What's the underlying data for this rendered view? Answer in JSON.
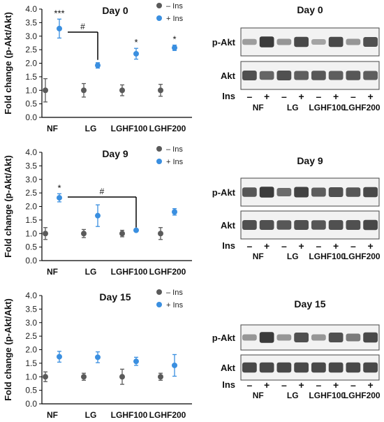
{
  "colors": {
    "minus": "#5a5a5a",
    "plus": "#3a8fe0",
    "axis": "#000000",
    "blot_bg": "#f2f2f2",
    "band": "#2a2a2a"
  },
  "chart_data": [
    {
      "type": "scatter",
      "title": "Day 0",
      "ylabel": "Fold change (p-Akt/Akt)",
      "ylim": [
        0,
        4.0
      ],
      "yticks": [
        "0.0",
        "0.5",
        "1.0",
        "1.5",
        "2.0",
        "2.5",
        "3.0",
        "3.5",
        "4.0"
      ],
      "categories": [
        "NF",
        "LG",
        "LGHF100",
        "LGHF200"
      ],
      "legend": [
        "– Ins",
        "+ Ins"
      ],
      "legend_position": "top-right",
      "series": [
        {
          "name": "– Ins",
          "values": [
            1.0,
            1.0,
            1.0,
            1.0
          ],
          "errors": [
            0.43,
            0.25,
            0.2,
            0.22
          ]
        },
        {
          "name": "+ Ins",
          "values": [
            3.28,
            1.92,
            2.35,
            2.57
          ],
          "errors": [
            0.35,
            0.1,
            0.2,
            0.1
          ]
        }
      ],
      "significance": [
        "***",
        "",
        "*",
        "*"
      ],
      "bracket_label": "#",
      "bracket_from": "NF",
      "bracket_to": "LG",
      "bracket_y": 3.15
    },
    {
      "type": "scatter",
      "title": "Day 9",
      "ylabel": "Fold change (p-Akt/Akt)",
      "ylim": [
        0,
        4.0
      ],
      "yticks": [
        "0.0",
        "0.5",
        "1.0",
        "1.5",
        "2.0",
        "2.5",
        "3.0",
        "3.5",
        "4.0"
      ],
      "categories": [
        "NF",
        "LG",
        "LGHF100",
        "LGHF200"
      ],
      "legend": [
        "– Ins",
        "+ Ins"
      ],
      "legend_position": "top-right",
      "series": [
        {
          "name": "– Ins",
          "values": [
            1.0,
            1.0,
            1.0,
            1.0
          ],
          "errors": [
            0.22,
            0.15,
            0.12,
            0.22
          ]
        },
        {
          "name": "+ Ins",
          "values": [
            2.32,
            1.66,
            1.12,
            1.8
          ],
          "errors": [
            0.15,
            0.4,
            0.0,
            0.12
          ]
        }
      ],
      "significance": [
        "*",
        "",
        "",
        ""
      ],
      "bracket_label": "#",
      "bracket_from": "NF",
      "bracket_to": "LGHF100",
      "bracket_y": 2.35
    },
    {
      "type": "scatter",
      "title": "Day 15",
      "ylabel": "Fold change (p-Akt/Akt)",
      "ylim": [
        0,
        4.0
      ],
      "yticks": [
        "0.0",
        "0.5",
        "1.0",
        "1.5",
        "2.0",
        "2.5",
        "3.0",
        "3.5",
        "4.0"
      ],
      "categories": [
        "NF",
        "LG",
        "LGHF100",
        "LGHF200"
      ],
      "legend": [
        "– Ins",
        "+ Ins"
      ],
      "legend_position": "top-right",
      "series": [
        {
          "name": "– Ins",
          "values": [
            1.0,
            1.0,
            1.0,
            1.0
          ],
          "errors": [
            0.18,
            0.13,
            0.28,
            0.13
          ]
        },
        {
          "name": "+ Ins",
          "values": [
            1.74,
            1.72,
            1.57,
            1.42
          ],
          "errors": [
            0.2,
            0.2,
            0.15,
            0.4
          ]
        }
      ],
      "significance": [
        "",
        "",
        "",
        ""
      ]
    }
  ],
  "blots": [
    {
      "title": "Day 0",
      "rows": [
        "p-Akt",
        "Akt"
      ],
      "ins_label": "Ins",
      "lane_signs": [
        "–",
        "+",
        "–",
        "+",
        "–",
        "+",
        "–",
        "+"
      ],
      "groups": [
        "NF",
        "LG",
        "LGHF100",
        "LGHF200"
      ],
      "intensity": [
        [
          0.25,
          0.95,
          0.3,
          0.85,
          0.2,
          0.85,
          0.3,
          0.8
        ],
        [
          0.8,
          0.65,
          0.8,
          0.7,
          0.75,
          0.7,
          0.75,
          0.7
        ]
      ]
    },
    {
      "title": "Day 9",
      "rows": [
        "p-Akt",
        "Akt"
      ],
      "ins_label": "Ins",
      "lane_signs": [
        "–",
        "+",
        "–",
        "+",
        "–",
        "+",
        "–",
        "+"
      ],
      "groups": [
        "NF",
        "LG",
        "LGHF100",
        "LGHF200"
      ],
      "intensity": [
        [
          0.75,
          0.95,
          0.6,
          0.9,
          0.7,
          0.8,
          0.75,
          0.85
        ],
        [
          0.8,
          0.8,
          0.75,
          0.8,
          0.75,
          0.8,
          0.8,
          0.85
        ]
      ]
    },
    {
      "title": "Day 15",
      "rows": [
        "p-Akt",
        "Akt"
      ],
      "ins_label": "Ins",
      "lane_signs": [
        "–",
        "+",
        "–",
        "+",
        "–",
        "+",
        "–",
        "+"
      ],
      "groups": [
        "NF",
        "LG",
        "LGHF100",
        "LGHF200"
      ],
      "intensity": [
        [
          0.3,
          0.95,
          0.3,
          0.8,
          0.3,
          0.8,
          0.5,
          0.85
        ],
        [
          0.85,
          0.85,
          0.85,
          0.85,
          0.85,
          0.85,
          0.85,
          0.85
        ]
      ]
    }
  ]
}
